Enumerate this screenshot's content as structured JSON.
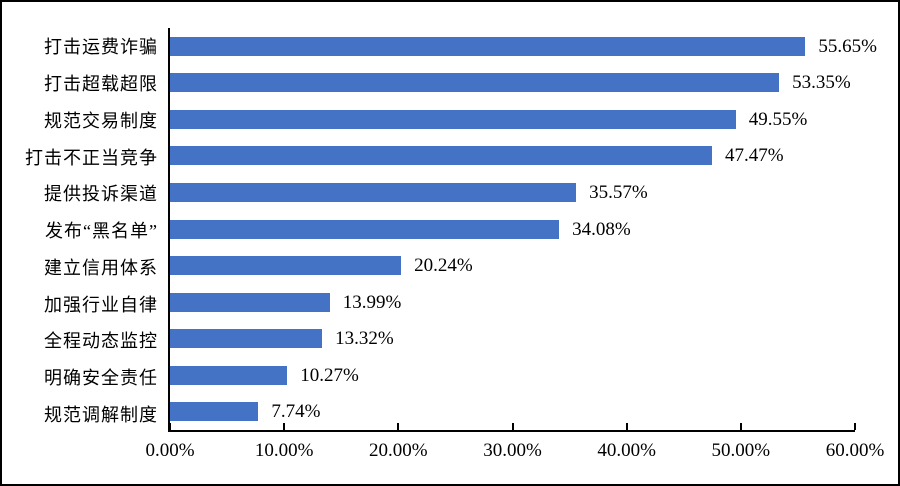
{
  "chart_data": {
    "type": "bar",
    "orientation": "horizontal",
    "title": "",
    "xlabel": "",
    "ylabel": "",
    "categories": [
      "打击运费诈骗",
      "打击超载超限",
      "规范交易制度",
      "打击不正当竞争",
      "提供投诉渠道",
      "发布“黑名单”",
      "建立信用体系",
      "加强行业自律",
      "全程动态监控",
      "明确安全责任",
      "规范调解制度"
    ],
    "values": [
      55.65,
      53.35,
      49.55,
      47.47,
      35.57,
      34.08,
      20.24,
      13.99,
      13.32,
      10.27,
      7.74
    ],
    "value_labels": [
      "55.65%",
      "53.35%",
      "49.55%",
      "47.47%",
      "35.57%",
      "34.08%",
      "20.24%",
      "13.99%",
      "13.32%",
      "10.27%",
      "7.74%"
    ],
    "xlim": [
      0,
      60
    ],
    "x_ticks": [
      "0.00%",
      "10.00%",
      "20.00%",
      "30.00%",
      "40.00%",
      "50.00%",
      "60.00%"
    ],
    "grid": false,
    "legend": null,
    "colors": {
      "bar": "#4472C4",
      "axis": "#000000",
      "text": "#000000",
      "background": "#FFFFFF",
      "border": "#000000"
    }
  }
}
